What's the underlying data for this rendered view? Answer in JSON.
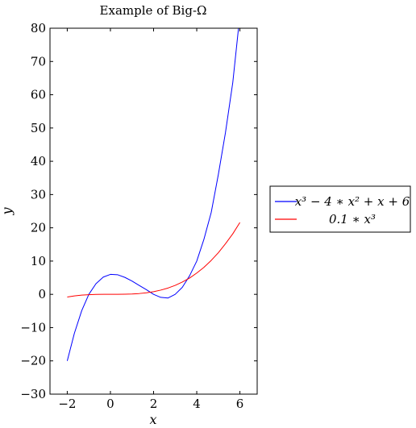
{
  "chart_data": {
    "type": "line",
    "title": "Example of Big-Ω",
    "xlabel": "x",
    "ylabel": "y",
    "xlim": [
      -2.8,
      6.8
    ],
    "ylim": [
      -30,
      80
    ],
    "x_ticks": [
      -2,
      0,
      2,
      4,
      6
    ],
    "y_ticks": [
      -30,
      -20,
      -10,
      0,
      10,
      20,
      30,
      40,
      50,
      60,
      70,
      80
    ],
    "x_tick_labels": [
      "−2",
      "0",
      "2",
      "4",
      "6"
    ],
    "y_tick_labels": [
      "−30",
      "−20",
      "−10",
      "0",
      "10",
      "20",
      "30",
      "40",
      "50",
      "60",
      "70",
      "80"
    ],
    "grid": false,
    "legend_position": "outside-right",
    "series": [
      {
        "name": "x³ − 4 ∗ x² + x + 6",
        "color": "#0000ff",
        "x": [
          -2,
          -1.67,
          -1.33,
          -1,
          -0.67,
          -0.33,
          0,
          0.33,
          0.67,
          1,
          1.33,
          1.67,
          2,
          2.33,
          2.67,
          3,
          3.33,
          3.67,
          4,
          4.33,
          4.67,
          5,
          5.33,
          5.67,
          6
        ],
        "y": [
          -20,
          -11.7,
          -4.9,
          0,
          3.2,
          5.2,
          6,
          5.9,
          5.1,
          4,
          2.7,
          1.4,
          0,
          -0.9,
          -1.1,
          0,
          2.1,
          5.6,
          10,
          16.5,
          24.6,
          36,
          48.6,
          63.7,
          84
        ]
      },
      {
        "name": "0.1 ∗ x³",
        "color": "#ff0000",
        "x": [
          -2,
          -1.67,
          -1.33,
          -1,
          -0.67,
          -0.33,
          0,
          0.33,
          0.67,
          1,
          1.33,
          1.67,
          2,
          2.33,
          2.67,
          3,
          3.33,
          3.67,
          4,
          4.33,
          4.67,
          5,
          5.33,
          5.67,
          6
        ],
        "y": [
          -0.8,
          -0.47,
          -0.24,
          -0.1,
          -0.03,
          0,
          0,
          0,
          0.03,
          0.1,
          0.24,
          0.47,
          0.8,
          1.27,
          1.9,
          2.7,
          3.7,
          4.9,
          6.4,
          8.1,
          10.2,
          12.5,
          15.2,
          18.2,
          21.6
        ]
      }
    ]
  }
}
